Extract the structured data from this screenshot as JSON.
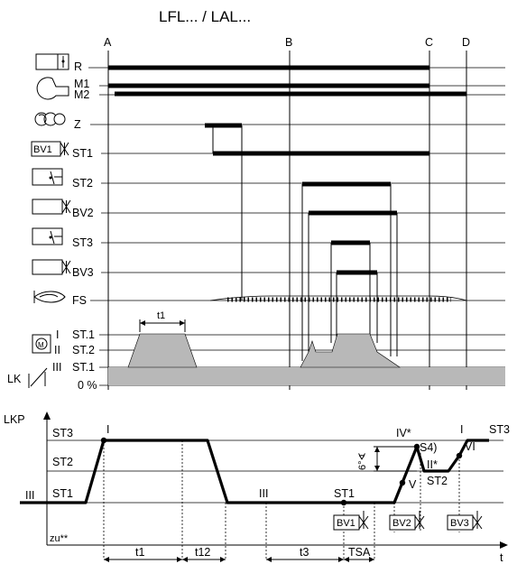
{
  "title": "LFL... / LAL...",
  "markers": {
    "a": "A",
    "b": "B",
    "c": "C",
    "d": "D"
  },
  "rows": {
    "r": "R",
    "m1": "M1",
    "m2": "M2",
    "z": "Z",
    "bv1_icon_text": "BV1",
    "st1": "ST1",
    "st2": "ST2",
    "bv2": "BV2",
    "st3": "ST3",
    "bv3": "BV3",
    "fs": "FS"
  },
  "actuator": {
    "t1": "t1",
    "row1_roman": "I",
    "row1_label": "ST.1",
    "row2_roman": "II",
    "row2_label": "ST.2",
    "row3_roman": "III",
    "row3_label": "ST.1",
    "lk": "LK",
    "zero": "0 %"
  },
  "lower": {
    "lkp": "LKP",
    "st3_left": "ST3",
    "st2_left": "ST2",
    "st1_left": "ST1",
    "iii_left": "III",
    "zu": "zu**",
    "i_top": "I",
    "iii_mid": "III",
    "st1_mid": "ST1",
    "iv": "IV*",
    "s4": "S4)",
    "ii": "II*",
    "v": "V",
    "st2_right": "ST2",
    "i_right": "I",
    "vi": "VI",
    "st3_right": "ST3",
    "angle": "6°∢",
    "valve_bv1": "BV1",
    "valve_bv2": "BV2",
    "valve_bv3": "BV3",
    "t_axis": "t",
    "t1": "t1",
    "t12": "t12",
    "t3": "t3",
    "tsa": "TSA"
  }
}
